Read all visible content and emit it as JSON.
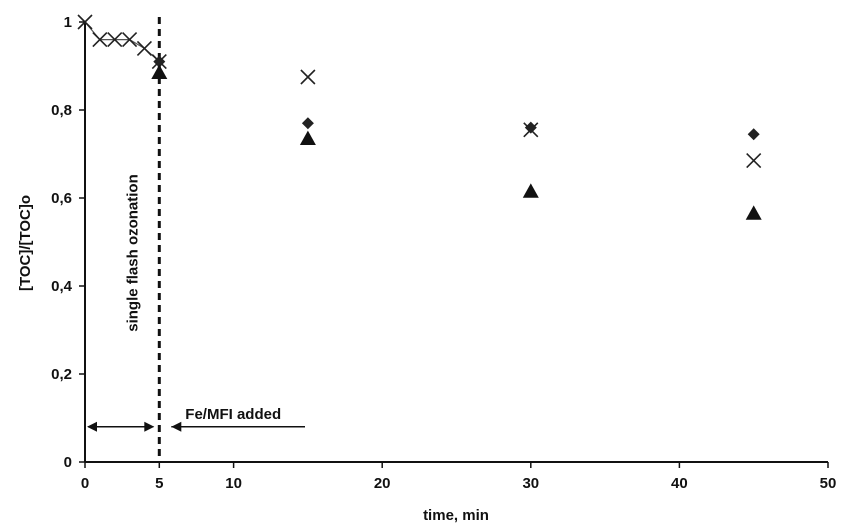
{
  "chart_data": {
    "type": "scatter",
    "title": "",
    "xlabel": "time, min",
    "ylabel": "[TOC]/[TOC]o",
    "xlim": [
      0,
      50
    ],
    "ylim": [
      0,
      1
    ],
    "x_ticks": [
      0,
      5,
      10,
      20,
      30,
      40,
      50
    ],
    "x_tick_labels": [
      "0",
      "5",
      "10",
      "20",
      "30",
      "40",
      "50"
    ],
    "y_ticks": [
      0,
      0.2,
      0.4,
      0.6,
      0.8,
      1
    ],
    "y_tick_labels": [
      "0",
      "0,2",
      "0,4",
      "0,6",
      "0,8",
      "1"
    ],
    "grid": false,
    "legend": "none",
    "series": [
      {
        "marker": "cross",
        "color": "#222222",
        "connected_until_x": 5,
        "x": [
          0,
          1,
          2,
          3,
          4,
          5,
          15,
          30,
          45
        ],
        "y": [
          1.0,
          0.96,
          0.96,
          0.96,
          0.94,
          0.91,
          0.875,
          0.755,
          0.685
        ]
      },
      {
        "marker": "diamond",
        "color": "#222222",
        "x": [
          5,
          15,
          30,
          45
        ],
        "y": [
          0.91,
          0.77,
          0.76,
          0.745
        ]
      },
      {
        "marker": "triangle",
        "color": "#111111",
        "x": [
          5,
          15,
          30,
          45
        ],
        "y": [
          0.885,
          0.735,
          0.615,
          0.565
        ]
      }
    ],
    "annotations": {
      "vertical_line_x": 5,
      "rotated_label": "single flash ozonation",
      "arrow_label": "Fe/MFI added",
      "arrow_y": 0.08
    }
  }
}
